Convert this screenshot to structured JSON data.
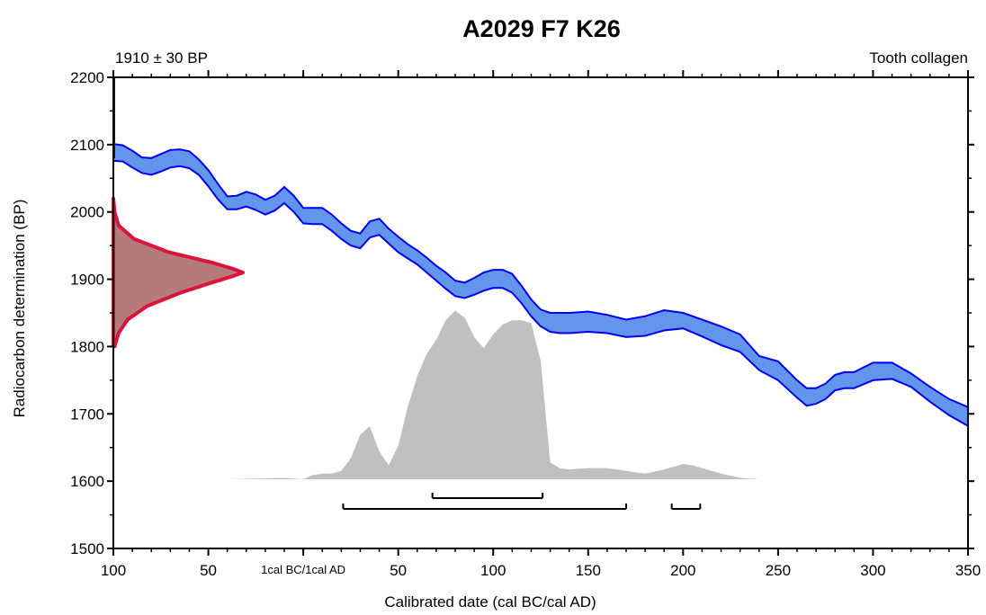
{
  "chart_data": {
    "type": "area",
    "title": "A2029 F7 K26",
    "sample_label": "1910 ± 30 BP",
    "material_label": "Tooth collagen",
    "xlabel": "Calibrated date (cal BC/cal AD)",
    "ylabel": "Radiocarbon determination (BP)",
    "xlim": [
      -100,
      350
    ],
    "ylim": [
      1500,
      2200
    ],
    "x_ticks": [
      {
        "value": -100,
        "label": "100"
      },
      {
        "value": -50,
        "label": "50"
      },
      {
        "value": 0,
        "label": "1cal BC/1cal AD"
      },
      {
        "value": 50,
        "label": "50"
      },
      {
        "value": 100,
        "label": "100"
      },
      {
        "value": 150,
        "label": "150"
      },
      {
        "value": 200,
        "label": "200"
      },
      {
        "value": 250,
        "label": "250"
      },
      {
        "value": 300,
        "label": "300"
      },
      {
        "value": 350,
        "label": "350"
      }
    ],
    "y_ticks": [
      {
        "value": 1500,
        "label": "1500"
      },
      {
        "value": 1600,
        "label": "1600"
      },
      {
        "value": 1700,
        "label": "1700"
      },
      {
        "value": 1800,
        "label": "1800"
      },
      {
        "value": 1900,
        "label": "1900"
      },
      {
        "value": 2000,
        "label": "2000"
      },
      {
        "value": 2100,
        "label": "2100"
      },
      {
        "value": 2200,
        "label": "2200"
      }
    ],
    "colors": {
      "curve_fill": "#6495ed",
      "curve_stroke": "#0000ee",
      "radiocarbon_fill": "#b57b7b",
      "radiocarbon_stroke": "#dc143c",
      "posterior_fill": "#c0c0c0",
      "range_bars": "#000000"
    },
    "calibration_curve": {
      "x": [
        -100,
        -95,
        -90,
        -85,
        -80,
        -75,
        -70,
        -65,
        -60,
        -55,
        -50,
        -45,
        -40,
        -35,
        -30,
        -25,
        -20,
        -15,
        -10,
        -5,
        0,
        5,
        10,
        15,
        20,
        25,
        30,
        35,
        40,
        45,
        50,
        55,
        60,
        65,
        70,
        75,
        80,
        85,
        90,
        95,
        100,
        105,
        110,
        115,
        120,
        125,
        130,
        135,
        140,
        150,
        160,
        170,
        180,
        190,
        200,
        210,
        220,
        230,
        240,
        250,
        260,
        265,
        270,
        275,
        280,
        285,
        290,
        300,
        310,
        320,
        330,
        340,
        350
      ],
      "upper": [
        2101,
        2099,
        2091,
        2081,
        2080,
        2086,
        2092,
        2093,
        2090,
        2078,
        2062,
        2042,
        2023,
        2024,
        2030,
        2026,
        2018,
        2024,
        2037,
        2024,
        2006,
        2006,
        2006,
        1996,
        1983,
        1972,
        1968,
        1986,
        1990,
        1975,
        1963,
        1952,
        1943,
        1932,
        1920,
        1910,
        1898,
        1895,
        1902,
        1910,
        1914,
        1914,
        1908,
        1890,
        1870,
        1855,
        1850,
        1850,
        1850,
        1852,
        1847,
        1840,
        1845,
        1854,
        1850,
        1840,
        1830,
        1818,
        1786,
        1778,
        1750,
        1738,
        1738,
        1745,
        1758,
        1762,
        1762,
        1776,
        1776,
        1760,
        1740,
        1722,
        1710
      ],
      "lower": [
        2076,
        2075,
        2066,
        2058,
        2055,
        2060,
        2066,
        2068,
        2065,
        2055,
        2038,
        2019,
        2004,
        2004,
        2008,
        2003,
        1996,
        2002,
        2013,
        2000,
        1983,
        1982,
        1982,
        1972,
        1960,
        1950,
        1946,
        1962,
        1966,
        1953,
        1940,
        1931,
        1922,
        1910,
        1898,
        1886,
        1875,
        1872,
        1877,
        1883,
        1887,
        1887,
        1880,
        1864,
        1845,
        1830,
        1822,
        1820,
        1820,
        1822,
        1820,
        1814,
        1816,
        1824,
        1827,
        1815,
        1802,
        1792,
        1765,
        1750,
        1724,
        1712,
        1715,
        1722,
        1735,
        1738,
        1738,
        1750,
        1752,
        1740,
        1718,
        1698,
        1682
      ]
    },
    "radiocarbon_date": {
      "mean": 1910,
      "sd": 30,
      "y": [
        1800,
        1820,
        1840,
        1860,
        1880,
        1895,
        1905,
        1910,
        1915,
        1925,
        1940,
        1960,
        1980,
        2000,
        2020
      ],
      "density": [
        0.01,
        0.04,
        0.11,
        0.26,
        0.52,
        0.76,
        0.93,
        1.0,
        0.93,
        0.76,
        0.43,
        0.16,
        0.04,
        0.01,
        0.0
      ]
    },
    "posterior_distribution": {
      "x": [
        -40,
        -10,
        0,
        5,
        10,
        15,
        20,
        25,
        30,
        35,
        40,
        45,
        50,
        55,
        60,
        65,
        70,
        75,
        80,
        85,
        90,
        95,
        100,
        105,
        110,
        115,
        120,
        125,
        130,
        135,
        140,
        150,
        160,
        170,
        180,
        190,
        200,
        205,
        210,
        220,
        230,
        240
      ],
      "density": [
        0.0,
        0.01,
        0.0,
        0.03,
        0.04,
        0.04,
        0.06,
        0.15,
        0.32,
        0.38,
        0.2,
        0.1,
        0.24,
        0.52,
        0.74,
        0.9,
        1.0,
        1.14,
        1.21,
        1.16,
        1.02,
        0.94,
        1.04,
        1.11,
        1.14,
        1.14,
        1.12,
        0.85,
        0.12,
        0.08,
        0.07,
        0.08,
        0.08,
        0.06,
        0.04,
        0.07,
        0.11,
        0.1,
        0.08,
        0.04,
        0.01,
        0.0
      ]
    },
    "hpd_ranges": {
      "sigma1": [
        [
          68,
          126
        ]
      ],
      "sigma2": [
        [
          21,
          170
        ],
        [
          194,
          209
        ]
      ]
    }
  }
}
